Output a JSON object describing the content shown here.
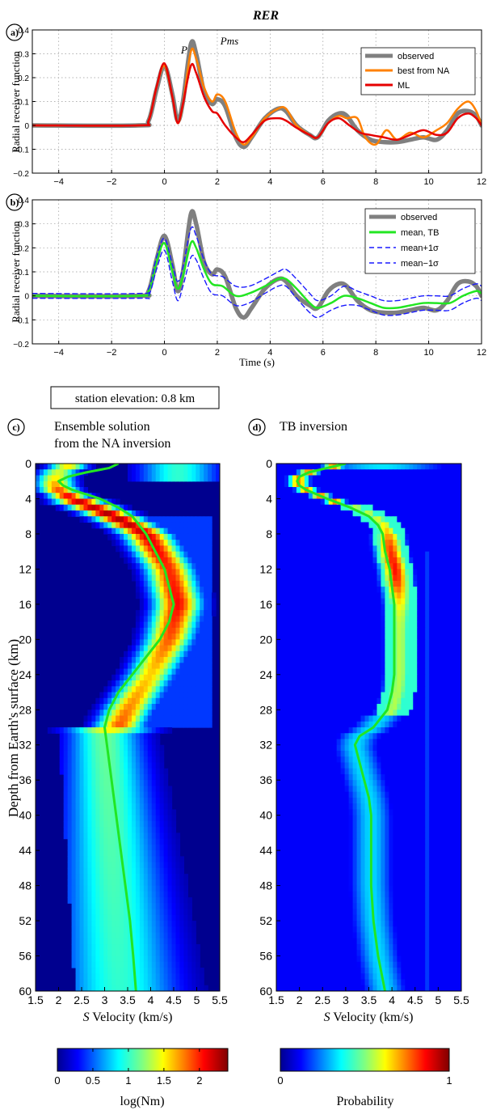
{
  "figure_title": "RER",
  "station_label": "station elevation: 0.8 km",
  "panel_labels": {
    "a": "a)",
    "b": "b)",
    "c": "c)",
    "d": "d)"
  },
  "colors": {
    "observed": "#808080",
    "best_na": "#ff8000",
    "ml": "#e60000",
    "mean_tb": "#22e622",
    "sigma": "#1a1aff"
  },
  "chart_data": [
    {
      "type": "line",
      "panel": "a",
      "ylabel": "Radial receiver function",
      "xlim": [
        -5,
        12
      ],
      "ylim": [
        -0.2,
        0.4
      ],
      "xticks": [
        -4,
        -2,
        0,
        2,
        4,
        6,
        8,
        10,
        12
      ],
      "yticks": [
        -0.2,
        -0.1,
        0,
        0.1,
        0.2,
        0.3,
        0.4
      ],
      "grid": true,
      "legend": "top-right",
      "annotations": [
        {
          "text": "P",
          "x": 0.2,
          "y": 0.28
        },
        {
          "text": "Pms",
          "x": 1.8,
          "y": 0.37
        }
      ],
      "series": [
        {
          "name": "observed",
          "color": "#808080",
          "style": "solid-thick",
          "x": [
            -5,
            -1,
            -0.6,
            -0.3,
            0,
            0.3,
            0.5,
            0.7,
            1.0,
            1.2,
            1.5,
            1.8,
            2.0,
            2.3,
            2.7,
            3.0,
            3.3,
            3.8,
            4.3,
            4.6,
            5.0,
            5.5,
            5.8,
            6.2,
            6.6,
            6.9,
            7.3,
            7.8,
            8.3,
            8.8,
            9.3,
            9.8,
            10.3,
            10.7,
            11.1,
            11.5,
            11.8,
            12
          ],
          "y": [
            0,
            0,
            0.02,
            0.15,
            0.25,
            0.13,
            0.02,
            0.1,
            0.34,
            0.3,
            0.14,
            0.09,
            0.11,
            0.08,
            -0.05,
            -0.09,
            -0.05,
            0.03,
            0.07,
            0.06,
            0.0,
            -0.04,
            -0.05,
            0.02,
            0.05,
            0.04,
            -0.02,
            -0.06,
            -0.07,
            -0.07,
            -0.06,
            -0.05,
            -0.06,
            -0.02,
            0.05,
            0.06,
            0.04,
            0.0
          ]
        },
        {
          "name": "best from NA",
          "color": "#ff8000",
          "style": "solid",
          "x": [
            -5,
            -1,
            -0.6,
            -0.3,
            0,
            0.3,
            0.5,
            0.7,
            1.0,
            1.2,
            1.5,
            1.8,
            2.0,
            2.3,
            2.7,
            3.0,
            3.3,
            3.8,
            4.3,
            4.6,
            5.0,
            5.5,
            5.8,
            6.2,
            6.6,
            6.9,
            7.3,
            7.6,
            8.0,
            8.4,
            8.8,
            9.3,
            9.8,
            10.3,
            10.7,
            11.1,
            11.5,
            11.8,
            12
          ],
          "y": [
            0,
            0,
            0.02,
            0.16,
            0.25,
            0.12,
            0.01,
            0.09,
            0.31,
            0.28,
            0.16,
            0.1,
            0.13,
            0.1,
            -0.03,
            -0.08,
            -0.05,
            0.03,
            0.07,
            0.07,
            0.0,
            -0.04,
            -0.05,
            0.01,
            0.04,
            0.03,
            0.03,
            -0.05,
            -0.08,
            -0.02,
            -0.06,
            -0.03,
            -0.05,
            -0.02,
            0.01,
            0.07,
            0.1,
            0.06,
            0.0
          ]
        },
        {
          "name": "ML",
          "color": "#e60000",
          "style": "solid",
          "x": [
            -5,
            -1,
            -0.6,
            -0.3,
            0,
            0.3,
            0.5,
            0.7,
            1.0,
            1.2,
            1.5,
            1.8,
            2.0,
            2.3,
            2.7,
            3.0,
            3.3,
            3.8,
            4.3,
            4.6,
            5.0,
            5.5,
            5.8,
            6.2,
            6.6,
            7.0,
            7.4,
            7.8,
            8.3,
            8.8,
            9.3,
            9.8,
            10.3,
            10.7,
            11.1,
            11.5,
            11.8,
            12
          ],
          "y": [
            0,
            0,
            0.02,
            0.16,
            0.26,
            0.12,
            0.01,
            0.09,
            0.25,
            0.22,
            0.12,
            0.06,
            0.05,
            0.0,
            -0.05,
            -0.07,
            -0.04,
            0.02,
            0.03,
            0.02,
            -0.01,
            -0.04,
            -0.05,
            0.01,
            0.03,
            0.0,
            -0.03,
            -0.04,
            -0.05,
            -0.06,
            -0.04,
            -0.02,
            -0.04,
            -0.03,
            0.03,
            0.05,
            0.03,
            0.0
          ]
        }
      ]
    },
    {
      "type": "line",
      "panel": "b",
      "ylabel": "Radial receiver function",
      "xlabel": "Time (s)",
      "xlim": [
        -5,
        12
      ],
      "ylim": [
        -0.2,
        0.4
      ],
      "xticks": [
        -4,
        -2,
        0,
        2,
        4,
        6,
        8,
        10,
        12
      ],
      "yticks": [
        -0.2,
        -0.1,
        0,
        0.1,
        0.2,
        0.3,
        0.4
      ],
      "grid": true,
      "legend": "top-right",
      "series": [
        {
          "name": "observed",
          "color": "#808080",
          "style": "solid-thick",
          "x": [
            -5,
            -1,
            -0.6,
            -0.3,
            0,
            0.3,
            0.5,
            0.7,
            1.0,
            1.2,
            1.5,
            1.8,
            2.0,
            2.3,
            2.7,
            3.0,
            3.3,
            3.8,
            4.3,
            4.6,
            5.0,
            5.5,
            5.8,
            6.2,
            6.6,
            6.9,
            7.3,
            7.8,
            8.3,
            8.8,
            9.3,
            9.8,
            10.3,
            10.7,
            11.1,
            11.5,
            11.8,
            12
          ],
          "y": [
            0,
            0,
            0.02,
            0.15,
            0.25,
            0.13,
            0.02,
            0.1,
            0.34,
            0.3,
            0.14,
            0.09,
            0.11,
            0.08,
            -0.05,
            -0.09,
            -0.05,
            0.03,
            0.07,
            0.06,
            0.0,
            -0.04,
            -0.05,
            0.02,
            0.05,
            0.04,
            -0.02,
            -0.06,
            -0.07,
            -0.07,
            -0.06,
            -0.05,
            -0.06,
            -0.02,
            0.05,
            0.06,
            0.04,
            0.0
          ]
        },
        {
          "name": "mean, TB",
          "color": "#22e622",
          "style": "solid",
          "x": [
            -5,
            -1,
            -0.6,
            -0.3,
            0,
            0.3,
            0.5,
            0.7,
            1.0,
            1.2,
            1.5,
            1.8,
            2.2,
            2.7,
            3.2,
            3.8,
            4.3,
            4.6,
            5.0,
            5.5,
            5.8,
            6.3,
            6.8,
            7.3,
            7.8,
            8.3,
            8.8,
            9.3,
            9.8,
            10.3,
            10.8,
            11.3,
            11.8,
            12
          ],
          "y": [
            0,
            0,
            0.02,
            0.14,
            0.22,
            0.1,
            0.03,
            0.08,
            0.22,
            0.2,
            0.11,
            0.05,
            0.04,
            0.0,
            0.01,
            0.04,
            0.07,
            0.07,
            0.03,
            -0.03,
            -0.05,
            -0.03,
            0.0,
            -0.01,
            -0.03,
            -0.05,
            -0.05,
            -0.04,
            -0.03,
            -0.03,
            -0.03,
            0.0,
            0.02,
            0.01
          ]
        },
        {
          "name": "mean+1σ",
          "color": "#1a1aff",
          "style": "dashed",
          "x": [
            -5,
            -1,
            -0.6,
            -0.3,
            0,
            0.3,
            0.5,
            0.7,
            1.0,
            1.2,
            1.5,
            1.8,
            2.2,
            2.7,
            3.2,
            3.8,
            4.3,
            4.6,
            5.0,
            5.5,
            5.8,
            6.3,
            6.8,
            7.3,
            7.8,
            8.3,
            8.8,
            9.3,
            9.8,
            10.3,
            10.8,
            11.3,
            11.8,
            12
          ],
          "y": [
            0.01,
            0.01,
            0.03,
            0.16,
            0.24,
            0.13,
            0.06,
            0.12,
            0.28,
            0.25,
            0.15,
            0.09,
            0.08,
            0.04,
            0.04,
            0.07,
            0.1,
            0.11,
            0.07,
            0.01,
            -0.02,
            0.0,
            0.04,
            0.02,
            0.0,
            -0.02,
            -0.02,
            -0.01,
            0.0,
            0.0,
            0.0,
            0.03,
            0.05,
            0.04
          ]
        },
        {
          "name": "mean−1σ",
          "color": "#1a1aff",
          "style": "dashed",
          "x": [
            -5,
            -1,
            -0.6,
            -0.3,
            0,
            0.3,
            0.5,
            0.7,
            1.0,
            1.2,
            1.5,
            1.8,
            2.2,
            2.7,
            3.2,
            3.8,
            4.3,
            4.6,
            5.0,
            5.5,
            5.8,
            6.3,
            6.8,
            7.3,
            7.8,
            8.3,
            8.8,
            9.3,
            9.8,
            10.3,
            10.8,
            11.3,
            11.8,
            12
          ],
          "y": [
            -0.01,
            -0.01,
            0.0,
            0.11,
            0.19,
            0.06,
            -0.02,
            0.04,
            0.16,
            0.15,
            0.07,
            0.01,
            0.0,
            -0.04,
            -0.03,
            0.01,
            0.04,
            0.04,
            -0.01,
            -0.07,
            -0.09,
            -0.06,
            -0.04,
            -0.04,
            -0.06,
            -0.08,
            -0.08,
            -0.07,
            -0.06,
            -0.06,
            -0.06,
            -0.03,
            -0.01,
            -0.02
          ]
        }
      ]
    },
    {
      "type": "heatmap",
      "panel": "c",
      "title": "Ensemble solution\nfrom the NA inversion",
      "xlabel_italic": "S",
      "xlabel_rest": " Velocity (km/s)",
      "ylabel": "Depth from Earth's surface (km)",
      "xlim": [
        1.5,
        5.5
      ],
      "ylim": [
        60,
        0
      ],
      "xticks": [
        1.5,
        2,
        2.5,
        3,
        3.5,
        4,
        4.5,
        5,
        5.5
      ],
      "xtick_labels": [
        "1.5",
        "2",
        "2.5",
        "3",
        "3.5",
        "4",
        "4.5",
        "5",
        "5.5"
      ],
      "yticks": [
        0,
        4,
        8,
        12,
        16,
        20,
        24,
        28,
        32,
        36,
        40,
        44,
        48,
        52,
        56,
        60
      ],
      "colorbar": {
        "label": "log(Nm)",
        "range": [
          0,
          2.4
        ],
        "ticks": [
          0,
          0.5,
          1,
          1.5,
          2
        ],
        "tick_labels": [
          "0",
          "0.5",
          "1",
          "1.5",
          "2"
        ]
      },
      "density_ridge": {
        "depth": [
          0,
          1,
          2,
          3,
          4,
          6,
          8,
          12,
          16,
          20,
          24,
          28,
          30
        ],
        "velocity": [
          2.3,
          2.0,
          1.9,
          2.0,
          2.3,
          3.2,
          3.9,
          4.4,
          4.6,
          4.4,
          4.0,
          3.5,
          3.3
        ],
        "peak": [
          1.6,
          1.4,
          1.6,
          1.9,
          2.2,
          2.3,
          2.2,
          2.0,
          2.1,
          1.9,
          1.6,
          1.8,
          1.9
        ]
      },
      "mean_curve": {
        "name": "mean",
        "color": "#22e622",
        "depth": [
          0,
          0.5,
          1,
          1.5,
          2,
          2.5,
          3,
          4,
          5,
          6,
          8,
          10,
          12,
          14,
          16,
          18,
          20,
          22,
          24,
          26,
          28,
          30,
          32,
          36,
          40,
          44,
          48,
          52,
          56,
          60
        ],
        "velocity": [
          3.3,
          3.1,
          2.6,
          2.2,
          2.0,
          2.1,
          2.3,
          2.9,
          3.3,
          3.6,
          3.9,
          4.1,
          4.3,
          4.4,
          4.5,
          4.4,
          4.2,
          3.9,
          3.6,
          3.3,
          3.1,
          3.0,
          3.05,
          3.15,
          3.25,
          3.35,
          3.45,
          3.55,
          3.62,
          3.68
        ]
      }
    },
    {
      "type": "heatmap",
      "panel": "d",
      "title": "TB inversion",
      "xlabel_italic": "S",
      "xlabel_rest": " Velocity (km/s)",
      "xlim": [
        1.5,
        5.5
      ],
      "ylim": [
        60,
        0
      ],
      "xticks": [
        1.5,
        2,
        2.5,
        3,
        3.5,
        4,
        4.5,
        5,
        5.5
      ],
      "xtick_labels": [
        "1.5",
        "2",
        "2.5",
        "3",
        "3.5",
        "4",
        "4.5",
        "5",
        "5.5"
      ],
      "yticks": [
        0,
        4,
        8,
        12,
        16,
        20,
        24,
        28,
        32,
        36,
        40,
        44,
        48,
        52,
        56,
        60
      ],
      "colorbar": {
        "label": "Probability",
        "range": [
          0,
          1
        ],
        "ticks": [
          0,
          1
        ],
        "tick_labels": [
          "0",
          "1"
        ]
      },
      "mean_curve": {
        "name": "mean",
        "color": "#22e622",
        "depth": [
          0,
          0.5,
          1,
          1.5,
          2,
          2.5,
          3,
          4,
          5,
          6,
          7,
          8,
          10,
          12,
          14,
          16,
          18,
          20,
          22,
          24,
          26,
          28,
          30,
          31,
          32,
          34,
          36,
          38,
          40,
          44,
          48,
          52,
          56,
          60
        ],
        "velocity": [
          3.0,
          2.6,
          2.2,
          2.0,
          1.95,
          2.0,
          2.15,
          2.6,
          3.1,
          3.5,
          3.7,
          3.8,
          3.85,
          3.95,
          4.0,
          4.05,
          4.05,
          4.05,
          4.05,
          4.05,
          4.0,
          3.9,
          3.6,
          3.3,
          3.2,
          3.3,
          3.4,
          3.5,
          3.55,
          3.55,
          3.55,
          3.6,
          3.7,
          3.85
        ]
      }
    }
  ]
}
